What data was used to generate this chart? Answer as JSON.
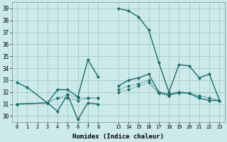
{
  "background_color": "#cceaea",
  "grid_color": "#aacccc",
  "line_color": "#1a6b6b",
  "xlabel": "Humidex (Indice chaleur)",
  "ylim": [
    29.5,
    39.5
  ],
  "yticks": [
    30,
    31,
    32,
    33,
    34,
    35,
    36,
    37,
    38,
    39
  ],
  "xticks_left": [
    0,
    1,
    2,
    3,
    4,
    5,
    6,
    7,
    8
  ],
  "xticks_right": [
    13,
    14,
    15,
    16,
    17,
    18,
    19,
    20,
    21,
    22,
    23
  ],
  "lines": [
    {
      "x": [
        0,
        1,
        3,
        4,
        5,
        6,
        7,
        8,
        13,
        14,
        15,
        16,
        17,
        18,
        19,
        20,
        21,
        22,
        23
      ],
      "y": [
        32.8,
        32.4,
        31.1,
        32.2,
        32.2,
        31.6,
        34.7,
        33.3,
        39.0,
        38.8,
        38.3,
        37.2,
        34.5,
        32.0,
        34.3,
        34.2,
        33.2,
        33.5,
        31.3
      ],
      "linewidth": 1.0,
      "linestyle": "-"
    },
    {
      "x": [
        0,
        3,
        4,
        5,
        6,
        7,
        8,
        13,
        14,
        15,
        16,
        17,
        18,
        19,
        20,
        21,
        22,
        23
      ],
      "y": [
        31.0,
        31.1,
        30.4,
        31.8,
        29.7,
        31.1,
        31.0,
        32.5,
        33.0,
        33.2,
        33.5,
        32.0,
        31.8,
        32.0,
        31.9,
        31.5,
        31.3,
        31.3
      ],
      "linewidth": 1.0,
      "linestyle": "-"
    },
    {
      "x": [
        0,
        3,
        4,
        5,
        6,
        7,
        8,
        13,
        14,
        15,
        16,
        17,
        18,
        19,
        20,
        21,
        22,
        23
      ],
      "y": [
        31.0,
        31.1,
        31.5,
        31.5,
        31.3,
        31.5,
        31.5,
        32.0,
        32.2,
        32.5,
        32.8,
        31.9,
        31.7,
        31.9,
        31.9,
        31.7,
        31.5,
        31.3
      ],
      "linewidth": 0.8,
      "linestyle": ":"
    },
    {
      "x": [
        0,
        3,
        4,
        5,
        6,
        7,
        8,
        13,
        14,
        15,
        16,
        17,
        18,
        19,
        20,
        21,
        22,
        23
      ],
      "y": [
        31.0,
        31.1,
        31.5,
        31.8,
        31.5,
        31.5,
        31.5,
        32.2,
        32.5,
        32.7,
        33.0,
        31.9,
        31.7,
        32.0,
        31.9,
        31.7,
        31.5,
        31.3
      ],
      "linewidth": 0.8,
      "linestyle": ":"
    }
  ]
}
